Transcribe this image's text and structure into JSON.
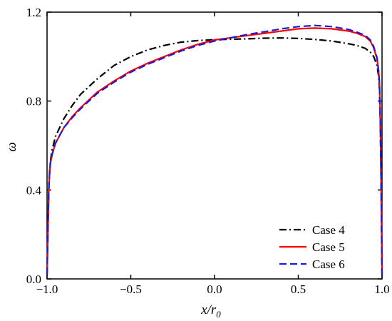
{
  "chart_data": {
    "type": "line",
    "title": "",
    "xlabel": "x/r",
    "xlabel_sub": "0",
    "ylabel": "ω",
    "xlim": [
      -1.0,
      1.0
    ],
    "ylim": [
      0.0,
      1.2
    ],
    "xticks": [
      -1.0,
      -0.5,
      0.0,
      0.5,
      1.0
    ],
    "xtick_labels": [
      "−1.0",
      "−0.5",
      "0.0",
      "0.5",
      "1.0"
    ],
    "yticks": [
      0.0,
      0.4,
      0.8,
      1.2
    ],
    "ytick_labels": [
      "0.0",
      "0.4",
      "0.8",
      "1.2"
    ],
    "grid": false,
    "legend_position": "bottom-right",
    "series": [
      {
        "name": "Case 4",
        "color": "#000000",
        "style": "dash-dot",
        "x": [
          -1.0,
          -0.995,
          -0.99,
          -0.985,
          -0.98,
          -0.97,
          -0.95,
          -0.9,
          -0.85,
          -0.8,
          -0.7,
          -0.6,
          -0.5,
          -0.4,
          -0.3,
          -0.2,
          -0.1,
          0.0,
          0.1,
          0.2,
          0.3,
          0.4,
          0.5,
          0.6,
          0.7,
          0.8,
          0.85,
          0.9,
          0.93,
          0.95,
          0.97,
          0.98,
          0.985,
          0.99,
          0.995,
          1.0
        ],
        "y": [
          0.02,
          0.2,
          0.4,
          0.48,
          0.53,
          0.58,
          0.64,
          0.72,
          0.78,
          0.83,
          0.9,
          0.96,
          1.0,
          1.03,
          1.05,
          1.065,
          1.072,
          1.076,
          1.078,
          1.08,
          1.083,
          1.084,
          1.082,
          1.077,
          1.07,
          1.058,
          1.05,
          1.037,
          1.02,
          1.0,
          0.96,
          0.91,
          0.85,
          0.7,
          0.4,
          0.02
        ]
      },
      {
        "name": "Case 5",
        "color": "#ff0000",
        "style": "solid",
        "x": [
          -1.0,
          -0.995,
          -0.99,
          -0.985,
          -0.98,
          -0.97,
          -0.95,
          -0.9,
          -0.85,
          -0.8,
          -0.7,
          -0.6,
          -0.5,
          -0.4,
          -0.3,
          -0.2,
          -0.1,
          0.0,
          0.1,
          0.2,
          0.3,
          0.4,
          0.5,
          0.6,
          0.7,
          0.8,
          0.85,
          0.9,
          0.93,
          0.95,
          0.97,
          0.98,
          0.985,
          0.99,
          0.995,
          1.0
        ],
        "y": [
          0.02,
          0.2,
          0.4,
          0.47,
          0.52,
          0.56,
          0.61,
          0.68,
          0.73,
          0.77,
          0.84,
          0.89,
          0.935,
          0.97,
          1.0,
          1.03,
          1.055,
          1.075,
          1.085,
          1.095,
          1.105,
          1.115,
          1.125,
          1.128,
          1.125,
          1.115,
          1.105,
          1.09,
          1.07,
          1.04,
          0.99,
          0.93,
          0.87,
          0.72,
          0.42,
          0.02
        ]
      },
      {
        "name": "Case 6",
        "color": "#1a1adc",
        "style": "dash",
        "x": [
          -1.0,
          -0.995,
          -0.99,
          -0.985,
          -0.98,
          -0.97,
          -0.95,
          -0.9,
          -0.85,
          -0.8,
          -0.7,
          -0.6,
          -0.5,
          -0.4,
          -0.3,
          -0.2,
          -0.1,
          0.0,
          0.1,
          0.2,
          0.3,
          0.4,
          0.5,
          0.6,
          0.7,
          0.8,
          0.85,
          0.9,
          0.93,
          0.95,
          0.97,
          0.98,
          0.985,
          0.99,
          0.995,
          1.0
        ],
        "y": [
          0.02,
          0.2,
          0.4,
          0.47,
          0.52,
          0.56,
          0.61,
          0.68,
          0.725,
          0.765,
          0.835,
          0.885,
          0.93,
          0.965,
          0.995,
          1.025,
          1.05,
          1.07,
          1.085,
          1.1,
          1.112,
          1.125,
          1.135,
          1.14,
          1.135,
          1.122,
          1.11,
          1.095,
          1.075,
          1.045,
          0.995,
          0.935,
          0.875,
          0.72,
          0.42,
          0.02
        ]
      }
    ]
  }
}
